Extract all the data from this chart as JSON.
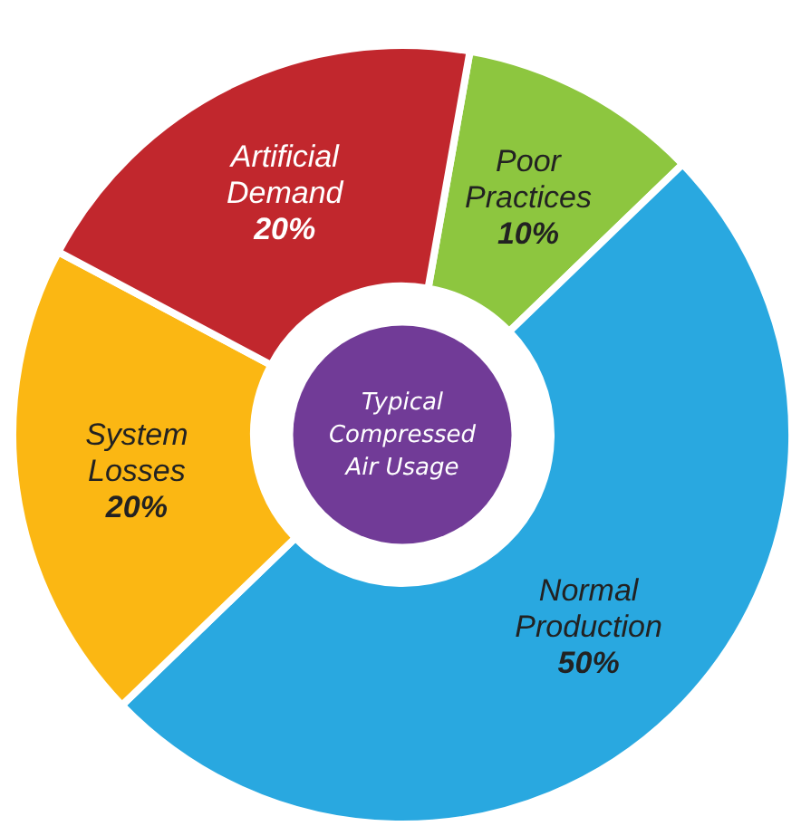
{
  "chart_data": {
    "type": "donut",
    "title": "Typical Compressed Air Usage",
    "categories": [
      "Poor Practices",
      "Normal Production",
      "System Losses",
      "Artificial Demand"
    ],
    "values": [
      10,
      50,
      20,
      20
    ],
    "colors": [
      "#8dc63f",
      "#29a8e0",
      "#fbb713",
      "#c1272d"
    ],
    "value_labels": [
      "10%",
      "50%",
      "20%",
      "20%"
    ]
  }
}
